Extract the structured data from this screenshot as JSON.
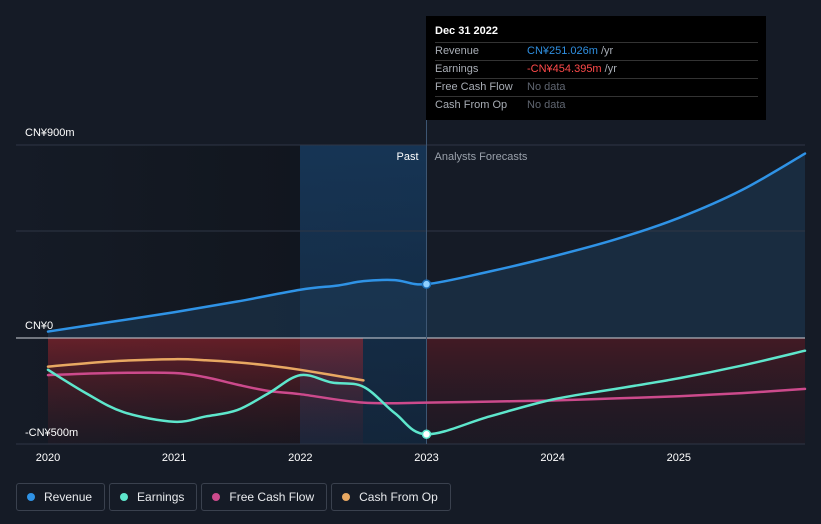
{
  "tooltip": {
    "date": "Dec 31 2022",
    "rows": [
      {
        "label": "Revenue",
        "value": "CN¥251.026m",
        "unit": " /yr",
        "color": "#2f8fe0"
      },
      {
        "label": "Earnings",
        "value": "-CN¥454.395m",
        "unit": " /yr",
        "color": "#ff4a4a"
      },
      {
        "label": "Free Cash Flow",
        "value": "No data",
        "unit": "",
        "color": "#5f6570"
      },
      {
        "label": "Cash From Op",
        "value": "No data",
        "unit": "",
        "color": "#5f6570"
      }
    ]
  },
  "legend": [
    {
      "label": "Revenue",
      "color": "#2f93e6"
    },
    {
      "label": "Earnings",
      "color": "#5ee6cc"
    },
    {
      "label": "Free Cash Flow",
      "color": "#cc4a8c"
    },
    {
      "label": "Cash From Op",
      "color": "#e8a862"
    }
  ],
  "chart_data": {
    "type": "line",
    "y_labels": [
      "CN¥900m",
      "CN¥0",
      "-CN¥500m"
    ],
    "ylim": [
      -500,
      900
    ],
    "xlim": [
      2020,
      2026
    ],
    "x_ticks": [
      "2020",
      "2021",
      "2022",
      "2023",
      "2024",
      "2025"
    ],
    "past_label": "Past",
    "forecast_label": "Analysts Forecasts",
    "divider_x": 2023,
    "highlight_point": {
      "series": "Revenue",
      "x": 2023,
      "y": 251.026
    },
    "series": [
      {
        "name": "Revenue",
        "color": "#2f93e6",
        "x": [
          2020,
          2020.5,
          2021,
          2021.5,
          2022,
          2022.3,
          2022.5,
          2022.75,
          2023,
          2023.5,
          2024,
          2024.5,
          2025,
          2025.5,
          2026
        ],
        "y": [
          30,
          75,
          120,
          170,
          225,
          245,
          265,
          270,
          251,
          310,
          380,
          460,
          560,
          690,
          860
        ]
      },
      {
        "name": "Earnings",
        "color": "#5ee6cc",
        "x": [
          2020,
          2020.3,
          2020.6,
          2021,
          2021.25,
          2021.5,
          2021.75,
          2022,
          2022.25,
          2022.5,
          2022.75,
          2023,
          2023.5,
          2024,
          2024.5,
          2025,
          2025.5,
          2026
        ],
        "y": [
          -150,
          -260,
          -350,
          -395,
          -370,
          -340,
          -260,
          -175,
          -210,
          -230,
          -355,
          -454,
          -370,
          -290,
          -240,
          -190,
          -130,
          -60
        ]
      },
      {
        "name": "Free Cash Flow",
        "color": "#cc4a8c",
        "x": [
          2020,
          2020.5,
          2021,
          2021.25,
          2021.5,
          2021.75,
          2022,
          2022.5,
          2023,
          2023.5,
          2024,
          2024.5,
          2025,
          2025.5,
          2026
        ],
        "y": [
          -175,
          -165,
          -165,
          -185,
          -220,
          -250,
          -265,
          -305,
          -305,
          -300,
          -295,
          -285,
          -275,
          -260,
          -240
        ]
      },
      {
        "name": "Cash From Op",
        "color": "#e8a862",
        "x": [
          2020,
          2020.5,
          2021,
          2021.25,
          2021.5,
          2021.75,
          2022,
          2022.5
        ],
        "y": [
          -135,
          -110,
          -100,
          -105,
          -115,
          -130,
          -150,
          -200
        ]
      }
    ]
  }
}
